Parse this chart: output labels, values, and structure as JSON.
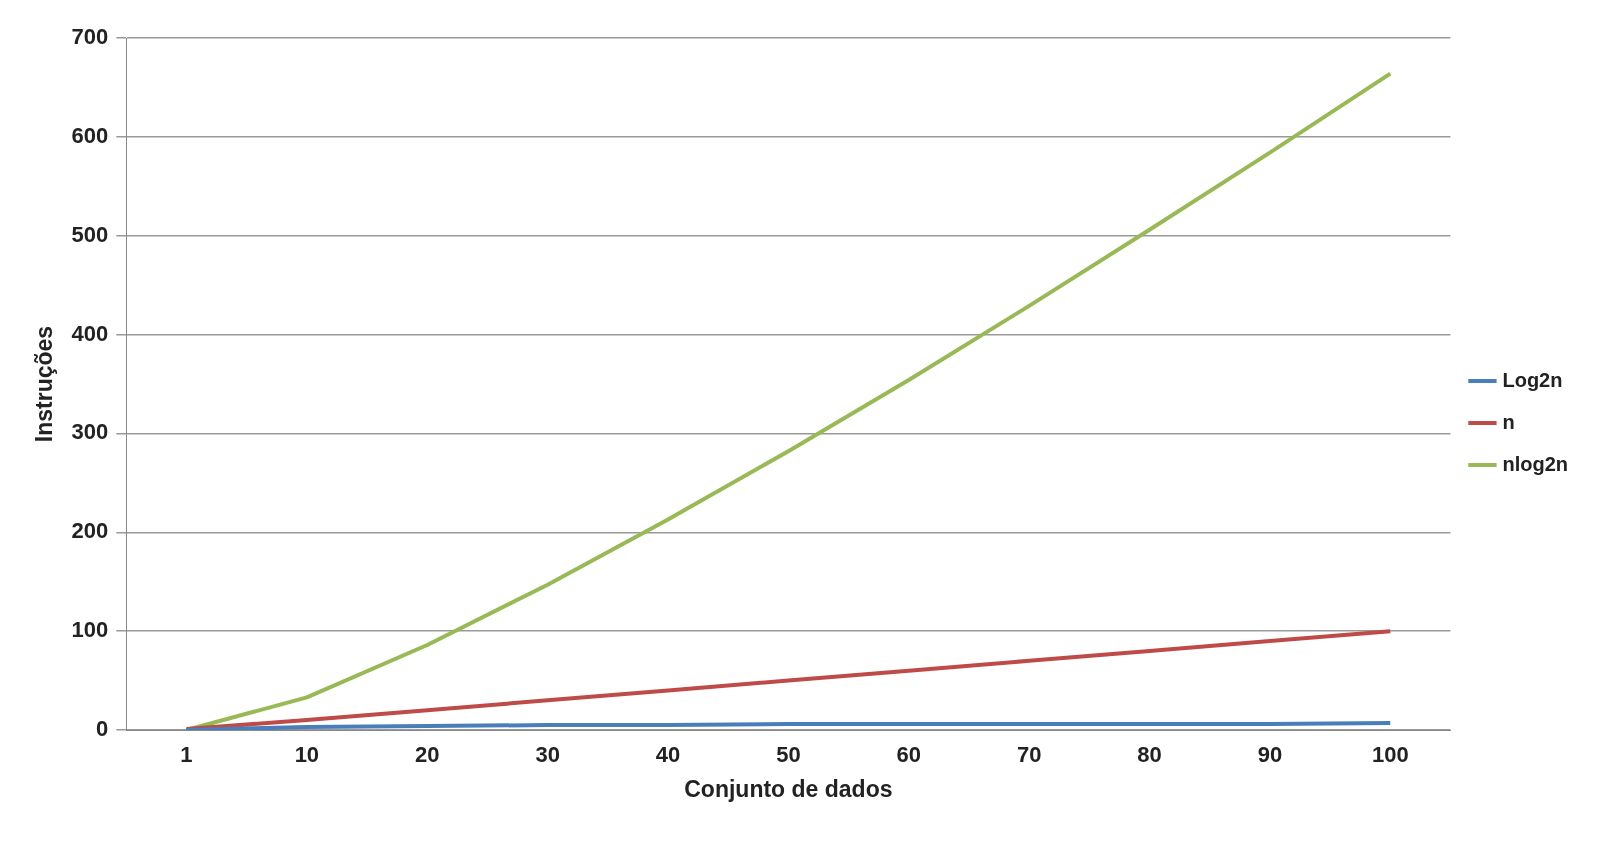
{
  "chart_data": {
    "type": "line",
    "xlabel": "Conjunto de dados",
    "ylabel": "Instruções",
    "categories": [
      "1",
      "10",
      "20",
      "30",
      "40",
      "50",
      "60",
      "70",
      "80",
      "90",
      "100"
    ],
    "series": [
      {
        "name": "Log2n",
        "color": "#4a7ebb",
        "values": [
          0,
          3,
          4,
          5,
          5,
          6,
          6,
          6,
          6,
          6,
          7
        ]
      },
      {
        "name": "n",
        "color": "#be4b48",
        "values": [
          1,
          10,
          20,
          30,
          40,
          50,
          60,
          70,
          80,
          90,
          100
        ]
      },
      {
        "name": "nlog2n",
        "color": "#98b954",
        "values": [
          0,
          33,
          86,
          147,
          213,
          282,
          354,
          429,
          506,
          584,
          664
        ]
      }
    ],
    "ylim": [
      0,
      700
    ],
    "yticks": [
      0,
      100,
      200,
      300,
      400,
      500,
      600,
      700
    ],
    "grid": "y",
    "legend": "right",
    "marker": "none",
    "line_style": "solid"
  }
}
